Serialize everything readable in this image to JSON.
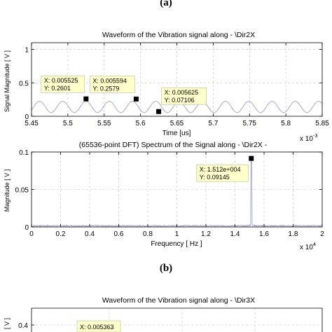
{
  "panel_labels": {
    "top": "(a)",
    "middle": "(b)"
  },
  "chart_data": [
    {
      "type": "line",
      "title": "Waveform of the Vibration signal along - \\Dir2X",
      "xlabel": "Time [us]",
      "ylabel": "Signal Magnitude [ V ]",
      "x_exponent_label": "x 10",
      "x_exponent": "-3",
      "xlim": [
        5.45,
        5.85
      ],
      "ylim": [
        0,
        1.1
      ],
      "xticks": [
        "5.45",
        "5.5",
        "5.55",
        "5.6",
        "5.65",
        "5.7",
        "5.75",
        "5.8",
        "5.85"
      ],
      "yticks": [
        "0",
        "0.5",
        "1"
      ],
      "grid": true,
      "series": [
        {
          "color": "#a9a9cc",
          "amplitude": 0.085,
          "offset": 0.14,
          "period_ms": 0.032,
          "phase_ms": 5.461
        }
      ],
      "datatips": [
        {
          "x": 5.525,
          "y": 0.2601,
          "x_label": "X: 0.005525",
          "y_label": "Y: 0.2601"
        },
        {
          "x": 5.594,
          "y": 0.2579,
          "x_label": "X: 0.005594",
          "y_label": "Y: 0.2579"
        },
        {
          "x": 5.625,
          "y": 0.07106,
          "x_label": "X: 0.005625",
          "y_label": "Y: 0.07106"
        }
      ]
    },
    {
      "type": "line",
      "title": "(65536-point DFT) Spectrum of the Signal along - \\Dir2X -",
      "xlabel": "Frequency [ Hz ]",
      "ylabel": "Magnitude [ V ]",
      "x_exponent_label": "x 10",
      "x_exponent": "4",
      "xlim": [
        0,
        2
      ],
      "ylim": [
        0,
        0.1
      ],
      "xticks": [
        "0",
        "0.2",
        "0.4",
        "0.6",
        "0.8",
        "1",
        "1.2",
        "1.4",
        "1.6",
        "1.8",
        "2"
      ],
      "yticks": [
        "0",
        "0.05",
        "0.1"
      ],
      "grid": true,
      "series": [
        {
          "color": "#a9a9cc",
          "peak_x": 1.512,
          "peak_y": 0.09145,
          "noise": 0.0015
        }
      ],
      "datatips": [
        {
          "x": 1.512,
          "y": 0.09145,
          "x_label": "X: 1.512e+004",
          "y_label": "Y: 0.09145"
        }
      ]
    },
    {
      "type": "line",
      "title": "Waveform of the Vibration signal along - \\Dir3X",
      "ylabel": "[ V ]",
      "yticks": [
        "0.4"
      ],
      "grid": true,
      "datatips": [
        {
          "x_label": "X: 0.005363"
        }
      ]
    }
  ]
}
